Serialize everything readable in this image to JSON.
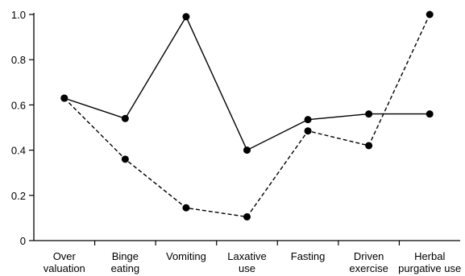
{
  "chart_data": {
    "type": "line",
    "title": "",
    "xlabel": "",
    "ylabel": "",
    "categories": [
      [
        "Over",
        "valuation"
      ],
      [
        "Binge",
        "eating"
      ],
      [
        "Vomiting"
      ],
      [
        "Laxative",
        "use"
      ],
      [
        "Fasting"
      ],
      [
        "Driven",
        "exercise"
      ],
      [
        "Herbal",
        "purgative use"
      ]
    ],
    "ylim": [
      0,
      1.0
    ],
    "yticks": [
      "0",
      "0.2",
      "0.4",
      "0.6",
      "0.8",
      "1.0"
    ],
    "grid": false,
    "series": [
      {
        "style": "solid",
        "values": [
          0.63,
          0.54,
          0.99,
          0.4,
          0.535,
          0.56,
          0.56
        ]
      },
      {
        "style": "dashed",
        "values": [
          0.63,
          0.36,
          0.145,
          0.105,
          0.485,
          0.42,
          1.0
        ]
      }
    ]
  }
}
